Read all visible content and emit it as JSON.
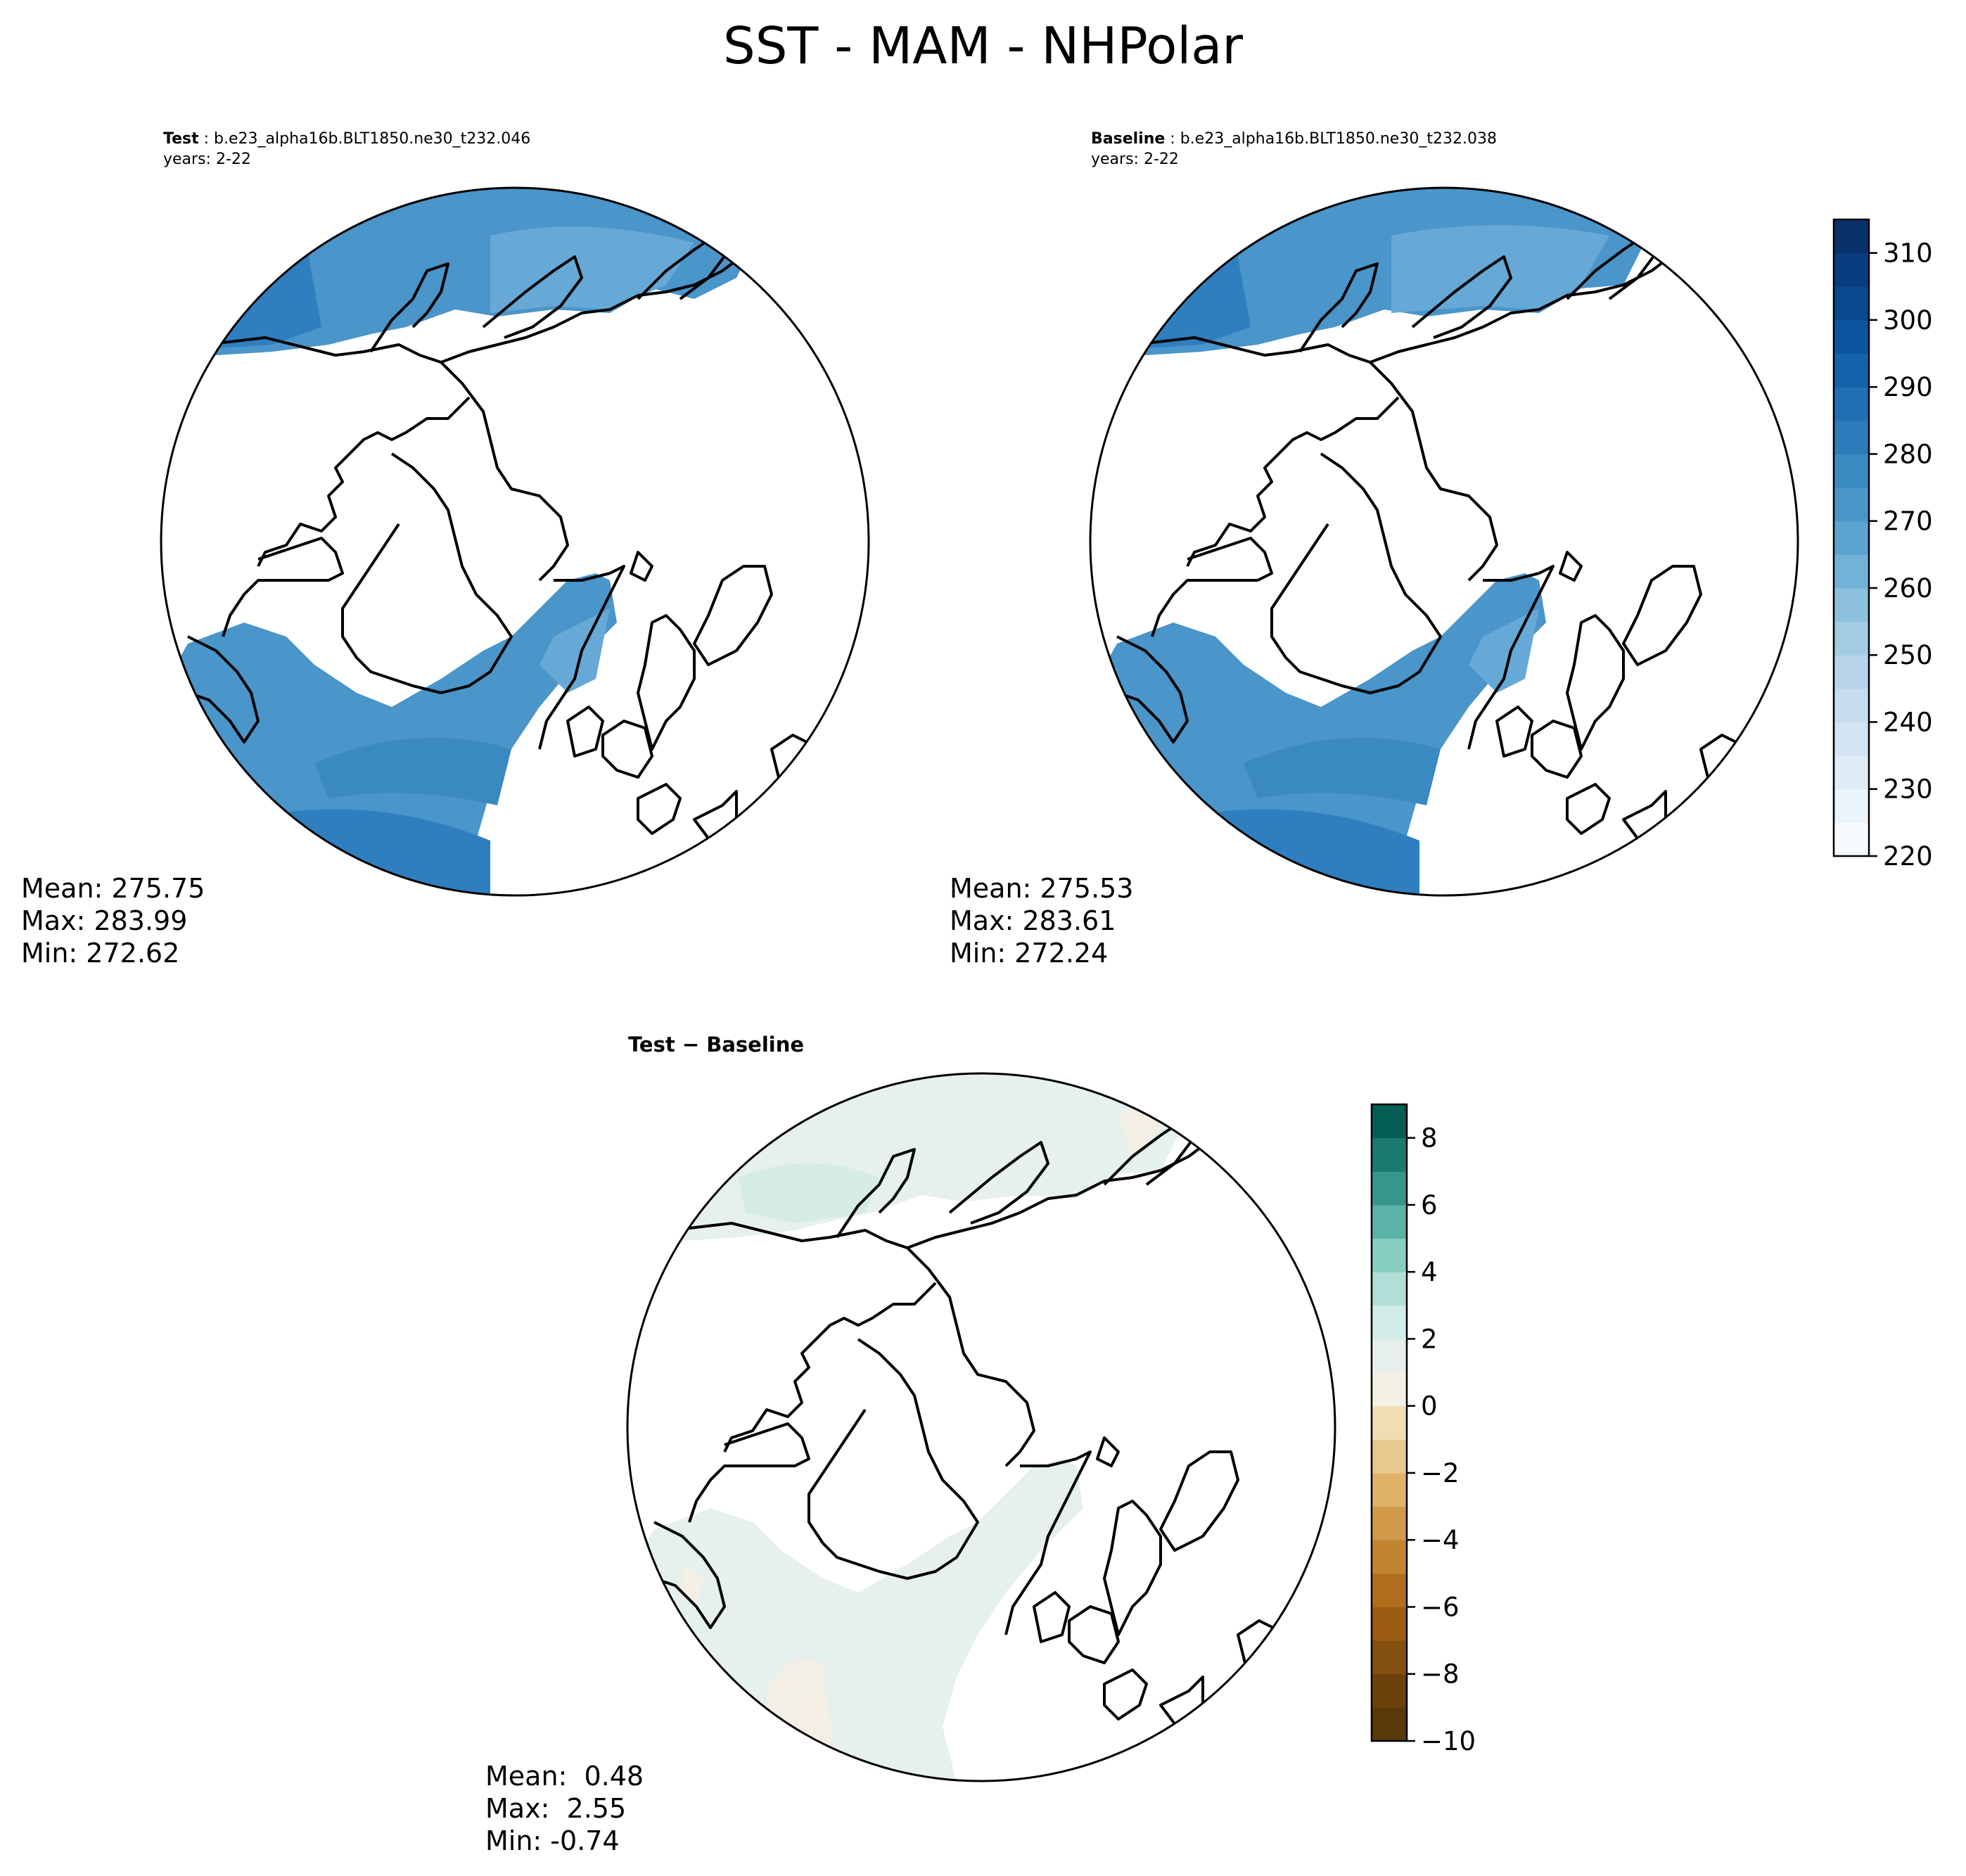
{
  "title": "SST - MAM - NHPolar",
  "panels": {
    "test": {
      "label": "Test",
      "case": "b.e23_alpha16b.BLT1850.ne30_t232.046",
      "years": "years: 2-22",
      "mean": "Mean: 275.75",
      "max": "Max: 283.99",
      "min": "Min: 272.62"
    },
    "baseline": {
      "label": "Baseline",
      "case": "b.e23_alpha16b.BLT1850.ne30_t232.038",
      "years": "years: 2-22",
      "mean": "Mean: 275.53",
      "max": "Max: 283.61",
      "min": "Min: 272.24"
    },
    "diff": {
      "title_a": "Test",
      "title_sep": " − ",
      "title_b": "Baseline",
      "mean": "Mean:  0.48",
      "max": "Max:  2.55",
      "min": "Min: -0.74"
    }
  },
  "colors": {
    "ocean_warm": "#2f7fc0",
    "ocean_mid": "#4a95c9",
    "ocean_light": "#66a9d6",
    "diff_pos": "#e6f0ee",
    "diff_pos2": "#d4ebe6",
    "diff_neg": "#f4efe4"
  },
  "chart_data": [
    {
      "type": "heatmap",
      "projection": "north-polar-stereographic",
      "title": "Test: b.e23_alpha16b.BLT1850.ne30_t232.046",
      "subtitle": "years: 2-22",
      "stats": {
        "mean": 275.75,
        "max": 283.99,
        "min": 272.62
      }
    },
    {
      "type": "heatmap",
      "projection": "north-polar-stereographic",
      "title": "Baseline: b.e23_alpha16b.BLT1850.ne30_t232.038",
      "subtitle": "years: 2-22",
      "stats": {
        "mean": 275.53,
        "max": 283.61,
        "min": 272.24
      },
      "colorbar": {
        "range": [
          220,
          315
        ],
        "levels": [
          220,
          225,
          230,
          235,
          240,
          245,
          250,
          255,
          260,
          265,
          270,
          275,
          280,
          285,
          290,
          295,
          300,
          305,
          310,
          315
        ],
        "ticks": [
          220,
          230,
          240,
          250,
          260,
          270,
          280,
          290,
          300,
          310
        ],
        "colors": [
          "#f7fbff",
          "#ebf3fb",
          "#dfecf8",
          "#d3e4f3",
          "#c7dcef",
          "#b7d4ea",
          "#a3cce3",
          "#8dc0dd",
          "#72b2d7",
          "#5ba3d0",
          "#4a96c9",
          "#3a89c1",
          "#2d7cba",
          "#2070b4",
          "#1563aa",
          "#0b559f",
          "#084990",
          "#083d7f",
          "#08306b"
        ]
      }
    },
    {
      "type": "heatmap",
      "projection": "north-polar-stereographic",
      "title": "Test − Baseline",
      "stats": {
        "mean": 0.48,
        "max": 2.55,
        "min": -0.74
      },
      "colorbar": {
        "range": [
          -10,
          9
        ],
        "levels": [
          -10,
          -9,
          -8,
          -7,
          -6,
          -5,
          -4,
          -3,
          -2,
          -1,
          0,
          1,
          2,
          3,
          4,
          5,
          6,
          7,
          8,
          9
        ],
        "ticks": [
          -10,
          -8,
          -6,
          -4,
          -2,
          0,
          2,
          4,
          6,
          8
        ],
        "colors": [
          "#583a0a",
          "#6c410c",
          "#83500f",
          "#9a5d13",
          "#b06e1d",
          "#c1852f",
          "#d19b4b",
          "#dfb26a",
          "#e8c88d",
          "#f1ddb3",
          "#f5f0e4",
          "#e6efec",
          "#d2ece7",
          "#afdfd6",
          "#87cec1",
          "#5ab3a6",
          "#36968b",
          "#1a7a70",
          "#045e53",
          "#013c30"
        ]
      }
    }
  ]
}
